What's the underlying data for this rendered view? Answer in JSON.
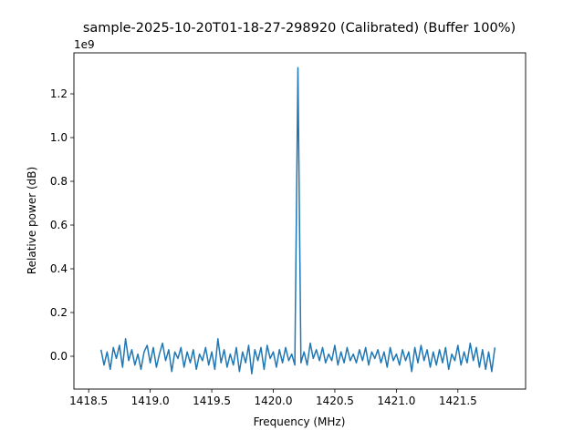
{
  "chart_data": {
    "type": "line",
    "title": "sample-2025-10-20T01-18-27-298920 (Calibrated) (Buffer 100%)",
    "xlabel": "Frequency (MHz)",
    "ylabel": "Relative power (dB)",
    "y_offset_label": "1e9",
    "xlim": [
      1418.38,
      1422.05
    ],
    "ylim": [
      -0.15,
      1.3875
    ],
    "y_scale_multiplier": 1000000000,
    "xticks": [
      1418.5,
      1419.0,
      1419.5,
      1420.0,
      1420.5,
      1421.0,
      1421.5
    ],
    "xtick_labels": [
      "1418.5",
      "1419.0",
      "1419.5",
      "1420.0",
      "1420.5",
      "1421.0",
      "1421.5"
    ],
    "yticks": [
      0.0,
      0.2,
      0.4,
      0.6,
      0.8,
      1.0,
      1.2
    ],
    "ytick_labels": [
      "0.0",
      "0.2",
      "0.4",
      "0.6",
      "0.8",
      "1.0",
      "1.2"
    ],
    "grid": false,
    "color": "#1f77b4",
    "series": [
      {
        "x_start": 1418.6,
        "x_step": 0.025,
        "values": [
          0.03,
          -0.04,
          0.02,
          -0.06,
          0.04,
          -0.01,
          0.05,
          -0.05,
          0.08,
          -0.02,
          0.03,
          -0.04,
          0.01,
          -0.06,
          0.02,
          0.05,
          -0.03,
          0.04,
          -0.05,
          0.01,
          0.06,
          -0.02,
          0.03,
          -0.07,
          0.02,
          -0.01,
          0.04,
          -0.05,
          0.02,
          -0.03,
          0.03,
          -0.06,
          0.01,
          -0.02,
          0.04,
          -0.04,
          0.02,
          -0.06,
          0.08,
          -0.03,
          0.03,
          -0.05,
          0.01,
          -0.04,
          0.04,
          -0.07,
          0.02,
          -0.03,
          0.05,
          -0.08,
          0.03,
          -0.02,
          0.04,
          -0.06,
          0.05,
          -0.01,
          0.02,
          -0.05,
          0.03,
          -0.03,
          0.04,
          -0.02,
          0.01,
          -0.04,
          1.32,
          -0.03,
          0.02,
          -0.04,
          0.06,
          -0.01,
          0.03,
          -0.02,
          0.04,
          -0.03,
          0.01,
          -0.02,
          0.05,
          -0.04,
          0.02,
          -0.03,
          0.04,
          -0.02,
          0.01,
          -0.03,
          0.03,
          -0.02,
          0.04,
          -0.04,
          0.02,
          -0.01,
          0.03,
          -0.03,
          0.02,
          -0.05,
          0.04,
          -0.02,
          0.01,
          -0.04,
          0.03,
          -0.02,
          0.02,
          -0.07,
          0.04,
          -0.03,
          0.05,
          -0.02,
          0.03,
          -0.05,
          0.02,
          -0.04,
          0.03,
          -0.03,
          0.04,
          -0.06,
          0.01,
          -0.02,
          0.05,
          -0.04,
          0.02,
          -0.03,
          0.06,
          -0.02,
          0.04,
          -0.05,
          0.03,
          -0.06,
          0.02,
          -0.07,
          0.04
        ]
      }
    ]
  }
}
